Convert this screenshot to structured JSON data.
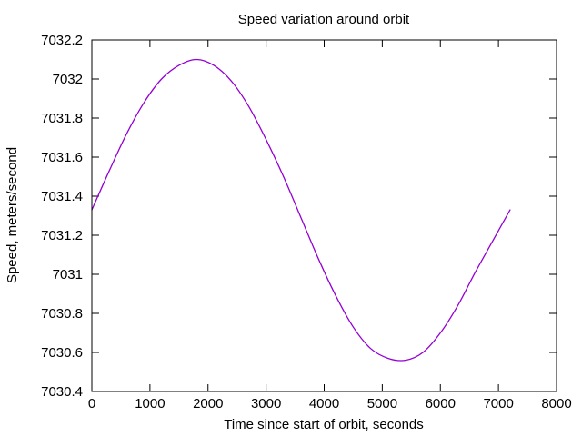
{
  "chart_data": {
    "type": "line",
    "title": "Speed variation around orbit",
    "xlabel": "Time since start of orbit, seconds",
    "ylabel": "Speed, meters/second",
    "xlim": [
      0,
      8000
    ],
    "ylim": [
      7030.4,
      7032.2
    ],
    "x_ticks": [
      0,
      1000,
      2000,
      3000,
      4000,
      5000,
      6000,
      7000,
      8000
    ],
    "x_tick_labels": [
      "0",
      "1000",
      "2000",
      "3000",
      "4000",
      "5000",
      "6000",
      "7000",
      "8000"
    ],
    "y_ticks": [
      7030.4,
      7030.6,
      7030.8,
      7031,
      7031.2,
      7031.4,
      7031.6,
      7031.8,
      7032,
      7032.2
    ],
    "y_tick_labels": [
      "7030.4",
      "7030.6",
      "7030.8",
      "7031",
      "7031.2",
      "7031.4",
      "7031.6",
      "7031.8",
      "7032",
      "7032.2"
    ],
    "grid": false,
    "legend": "none",
    "series": [
      {
        "name": "speed",
        "color": "#9400d3",
        "x": [
          0,
          300,
          600,
          900,
          1200,
          1500,
          1800,
          2100,
          2400,
          2700,
          3000,
          3300,
          3600,
          3900,
          4200,
          4500,
          4800,
          5100,
          5400,
          5700,
          6000,
          6300,
          6600,
          6900,
          7200
        ],
        "y": [
          7031.33,
          7031.53,
          7031.72,
          7031.88,
          7032.0,
          7032.07,
          7032.1,
          7032.07,
          7031.99,
          7031.86,
          7031.69,
          7031.5,
          7031.29,
          7031.08,
          7030.89,
          7030.73,
          7030.62,
          7030.57,
          7030.56,
          7030.6,
          7030.7,
          7030.84,
          7031.01,
          7031.17,
          7031.33
        ]
      }
    ]
  }
}
